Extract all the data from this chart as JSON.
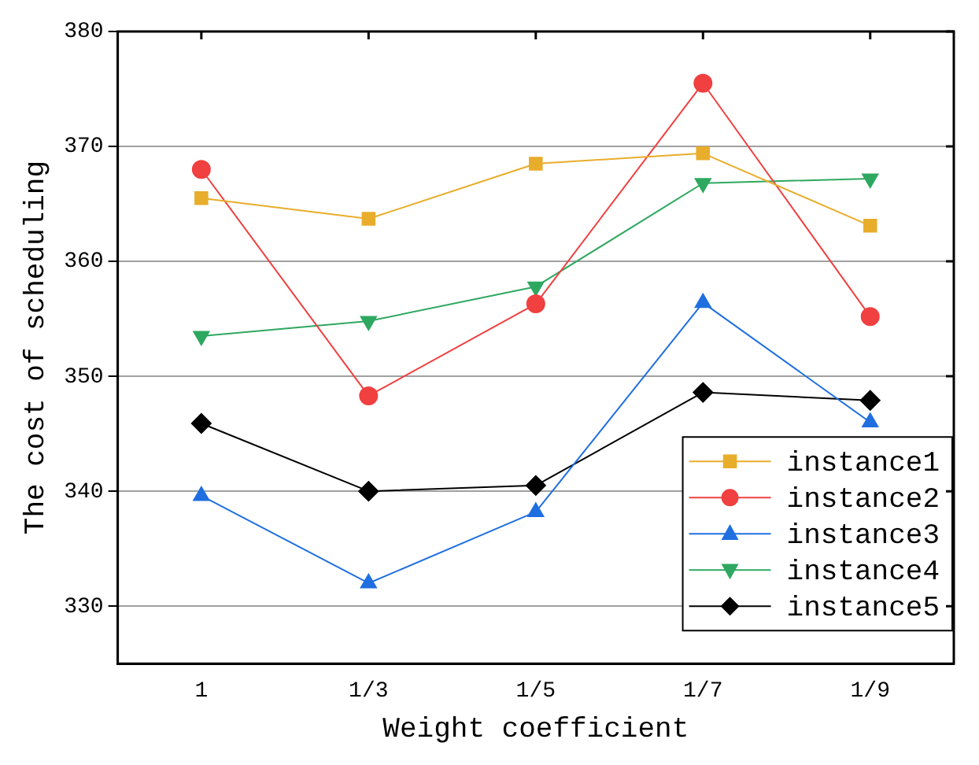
{
  "chart_data": {
    "type": "line",
    "xlabel": "Weight coefficient",
    "ylabel": "The cost of scheduling",
    "categories": [
      "1",
      "1/3",
      "1/5",
      "1/7",
      "1/9"
    ],
    "ylim": [
      325,
      380
    ],
    "yticks": [
      330,
      340,
      350,
      360,
      370,
      380
    ],
    "grid": "y",
    "legend": "bottom right",
    "line_style": "solid",
    "series": [
      {
        "name": "instance1",
        "color": "#e8ad2b",
        "marker": "square",
        "values": [
          365.5,
          363.7,
          368.5,
          369.4,
          363.1
        ]
      },
      {
        "name": "instance2",
        "color": "#f04040",
        "marker": "circle",
        "values": [
          368.0,
          348.3,
          356.3,
          375.5,
          355.2
        ]
      },
      {
        "name": "instance3",
        "color": "#1f6fe0",
        "marker": "triangle",
        "values": [
          339.6,
          332.0,
          338.2,
          356.4,
          346.0
        ]
      },
      {
        "name": "instance4",
        "color": "#2ea860",
        "marker": "triangle-down",
        "values": [
          353.5,
          354.8,
          357.8,
          366.8,
          367.2
        ]
      },
      {
        "name": "instance5",
        "color": "#000000",
        "marker": "diamond",
        "values": [
          345.9,
          340.0,
          340.5,
          348.6,
          347.9
        ]
      }
    ]
  }
}
